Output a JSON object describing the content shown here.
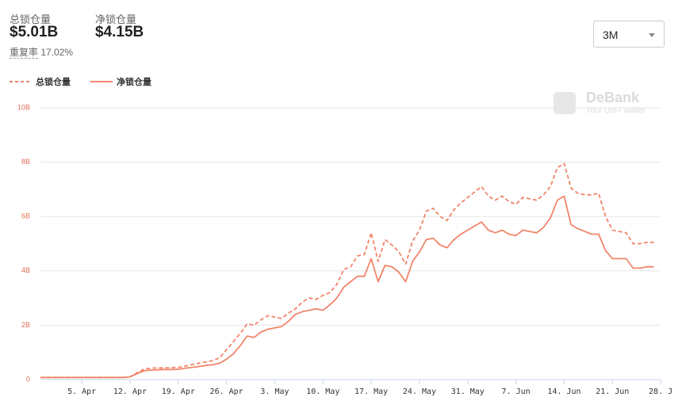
{
  "header": {
    "total_label": "总锁仓量",
    "total_value": "$5.01B",
    "net_label": "净锁仓量",
    "net_value": "$4.15B",
    "dup_label": "重复率",
    "dup_value": "17.02%"
  },
  "range_select": "3M",
  "watermark": {
    "brand": "DeBank",
    "tagline": "Your DeFi Wallet"
  },
  "chart_data": {
    "type": "line",
    "categories": [
      null,
      null,
      null,
      null,
      null,
      null,
      "5. Apr",
      null,
      null,
      null,
      null,
      null,
      null,
      "12. Apr",
      null,
      null,
      null,
      null,
      null,
      null,
      "19. Apr",
      null,
      null,
      null,
      null,
      null,
      null,
      "26. Apr",
      null,
      null,
      null,
      null,
      null,
      null,
      "3. May",
      null,
      null,
      null,
      null,
      null,
      null,
      "10. May",
      null,
      null,
      null,
      null,
      null,
      null,
      "17. May",
      null,
      null,
      null,
      null,
      null,
      null,
      "24. May",
      null,
      null,
      null,
      null,
      null,
      null,
      "31. May",
      null,
      null,
      null,
      null,
      null,
      null,
      "7. Jun",
      null,
      null,
      null,
      null,
      null,
      null,
      "14. Jun",
      null,
      null,
      null,
      null,
      null,
      null,
      "21. Jun",
      null,
      null,
      null,
      null,
      null,
      null,
      "28. J"
    ],
    "series": [
      {
        "name": "总锁仓量",
        "color": "#f0856a",
        "dashed": true,
        "values": [
          0.08,
          0.08,
          0.08,
          0.08,
          0.08,
          0.08,
          0.08,
          0.08,
          0.08,
          0.08,
          0.08,
          0.08,
          0.08,
          0.1,
          0.25,
          0.38,
          0.42,
          0.43,
          0.43,
          0.44,
          0.45,
          0.5,
          0.55,
          0.6,
          0.65,
          0.7,
          0.8,
          1.1,
          1.4,
          1.7,
          2.05,
          2.0,
          2.2,
          2.35,
          2.3,
          2.25,
          2.45,
          2.6,
          2.85,
          3.0,
          2.95,
          3.1,
          3.2,
          3.5,
          4.05,
          4.15,
          4.55,
          4.6,
          5.4,
          4.35,
          5.15,
          4.95,
          4.7,
          4.25,
          5.1,
          5.5,
          6.2,
          6.3,
          6.0,
          5.85,
          6.25,
          6.5,
          6.7,
          6.9,
          7.1,
          6.75,
          6.6,
          6.75,
          6.55,
          6.45,
          6.7,
          6.65,
          6.6,
          6.8,
          7.1,
          7.8,
          7.95,
          7.05,
          6.85,
          6.8,
          6.8,
          6.85,
          6.0,
          5.5,
          5.45,
          5.4,
          5.0,
          5.0,
          5.05,
          5.05,
          null
        ]
      },
      {
        "name": "净锁仓量",
        "color": "#f0856a",
        "dashed": false,
        "values": [
          0.08,
          0.08,
          0.08,
          0.08,
          0.08,
          0.08,
          0.08,
          0.08,
          0.08,
          0.08,
          0.08,
          0.08,
          0.08,
          0.1,
          0.22,
          0.32,
          0.35,
          0.36,
          0.37,
          0.37,
          0.38,
          0.42,
          0.45,
          0.48,
          0.52,
          0.55,
          0.6,
          0.75,
          0.95,
          1.25,
          1.6,
          1.55,
          1.75,
          1.85,
          1.9,
          1.95,
          2.15,
          2.4,
          2.5,
          2.55,
          2.6,
          2.55,
          2.75,
          3.0,
          3.4,
          3.6,
          3.8,
          3.8,
          4.45,
          3.6,
          4.2,
          4.15,
          3.95,
          3.6,
          4.35,
          4.7,
          5.15,
          5.2,
          4.95,
          4.85,
          5.15,
          5.35,
          5.5,
          5.65,
          5.8,
          5.5,
          5.4,
          5.5,
          5.35,
          5.3,
          5.5,
          5.45,
          5.4,
          5.6,
          5.95,
          6.6,
          6.75,
          5.7,
          5.55,
          5.45,
          5.35,
          5.35,
          4.75,
          4.45,
          4.45,
          4.45,
          4.1,
          4.1,
          4.15,
          4.15,
          null
        ]
      }
    ],
    "ylim": [
      0,
      10
    ],
    "yticks": [
      0,
      {
        "value": 2,
        "label": "2B"
      },
      {
        "value": 4,
        "label": "4B"
      },
      {
        "value": 6,
        "label": "6B"
      },
      {
        "value": 8,
        "label": "8B"
      },
      {
        "value": 10,
        "label": "10B"
      }
    ],
    "grid": true
  }
}
